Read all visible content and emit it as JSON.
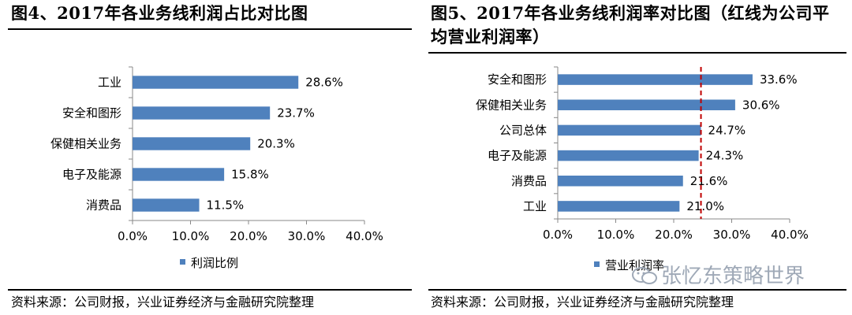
{
  "left_title": "图4、2017年各业务线利润占比对比图",
  "right_title_line1": "图5、2017年各业务线利润率对比图（红线为公司平",
  "right_title_line2": "均营业利润率）",
  "left_source": "资料来源：公司财报，兴业证券经济与金融研究院整理",
  "right_source": "资料来源：公司财报，兴业证券经济与金融研究院整理",
  "watermark": "张忆东策略世界",
  "colors": {
    "bar": "#4f81bd",
    "ref_line": "#c00000"
  },
  "chart_data": [
    {
      "type": "bar",
      "orientation": "horizontal",
      "categories": [
        "工业",
        "安全和图形",
        "保健相关业务",
        "电子及能源",
        "消费品"
      ],
      "values": [
        28.6,
        23.7,
        20.3,
        15.8,
        11.5
      ],
      "value_labels": [
        "28.6%",
        "23.7%",
        "20.3%",
        "15.8%",
        "11.5%"
      ],
      "xlim": [
        0,
        40
      ],
      "xticks": [
        "0.0%",
        "10.0%",
        "20.0%",
        "30.0%",
        "40.0%"
      ],
      "legend": "利润比例",
      "legend_position": "bottom",
      "grid": false
    },
    {
      "type": "bar",
      "orientation": "horizontal",
      "categories": [
        "安全和图形",
        "保健相关业务",
        "公司总体",
        "电子及能源",
        "消费品",
        "工业"
      ],
      "values": [
        33.6,
        30.6,
        24.7,
        24.3,
        21.6,
        21.0
      ],
      "value_labels": [
        "33.6%",
        "30.6%",
        "24.7%",
        "24.3%",
        "21.6%",
        "21.0%"
      ],
      "xlim": [
        0,
        40
      ],
      "xticks": [
        "0.0%",
        "10.0%",
        "20.0%",
        "30.0%",
        "40.0%"
      ],
      "legend": "营业利润率",
      "legend_position": "bottom",
      "reference_line": 24.7,
      "grid": false
    }
  ]
}
